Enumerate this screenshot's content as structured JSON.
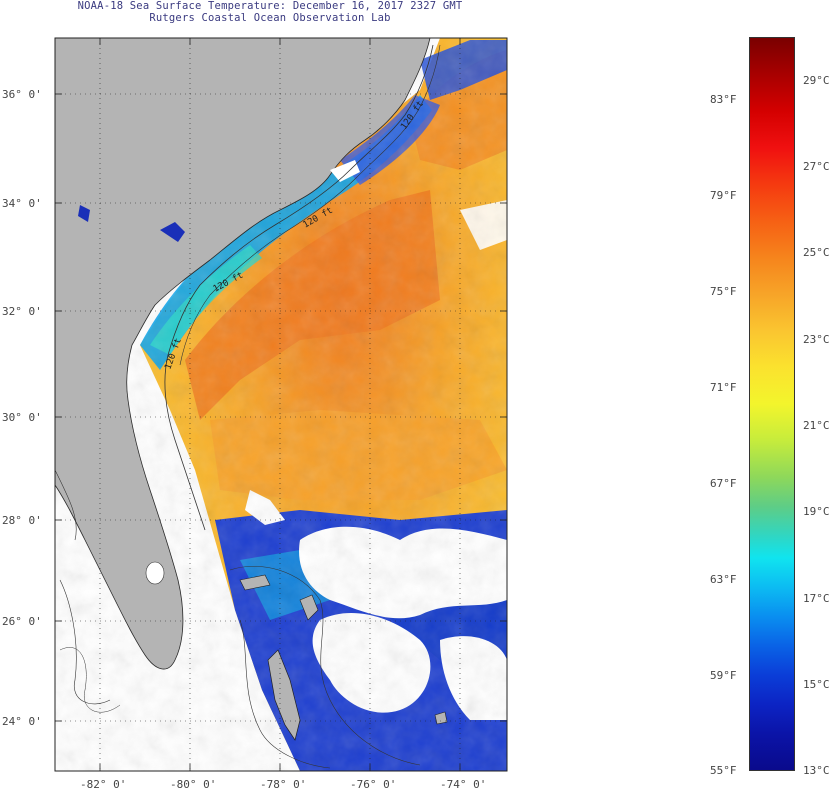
{
  "title": {
    "line1": "NOAA-18 Sea Surface Temperature:  December 16, 2017 2327 GMT",
    "line2": "Rutgers Coastal Ocean Observation Lab"
  },
  "map": {
    "lat_labels": [
      "36° 0'",
      "34° 0'",
      "32° 0'",
      "30° 0'",
      "28° 0'",
      "26° 0'",
      "24° 0'"
    ],
    "lon_labels": [
      "-82° 0'",
      "-80° 0'",
      "-78° 0'",
      "-76° 0'",
      "-74° 0'"
    ],
    "isobath_labels": [
      "120 ft",
      "120 ft",
      "120 ft",
      "120 ft"
    ],
    "colors": {
      "land": "#b4b4b4",
      "no_data": "#ffffff",
      "warm": "#f58220",
      "cool": "#1c3fd0"
    }
  },
  "colorbar": {
    "fahrenheit_labels": [
      "83°F",
      "79°F",
      "75°F",
      "71°F",
      "67°F",
      "63°F",
      "59°F",
      "55°F"
    ],
    "celsius_labels": [
      "29°C",
      "27°C",
      "25°C",
      "23°C",
      "21°C",
      "19°C",
      "17°C",
      "15°C",
      "13°C"
    ],
    "range_c": [
      13,
      30.5
    ]
  }
}
